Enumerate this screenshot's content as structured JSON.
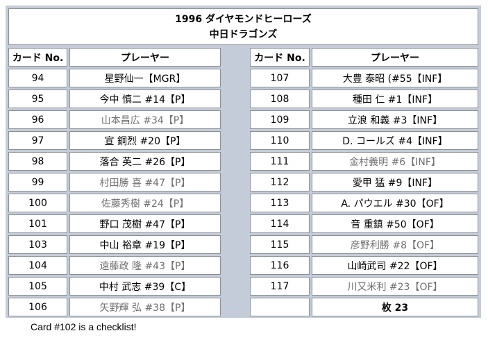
{
  "header": {
    "title": "1996 ダイヤモンドヒーローズ",
    "subtitle": "中日ドラゴンズ"
  },
  "columns": {
    "card_no": "カード No.",
    "player": "プレーヤー"
  },
  "left_rows": [
    {
      "no": "94",
      "player": "星野仙一【MGR】",
      "gray": false
    },
    {
      "no": "95",
      "player": "今中 慎二 #14【P】",
      "gray": false
    },
    {
      "no": "96",
      "player": "山本昌広 #34【P】",
      "gray": true
    },
    {
      "no": "97",
      "player": "宣 銅烈 #20【P】",
      "gray": false
    },
    {
      "no": "98",
      "player": "落合 英二 #26【P】",
      "gray": false
    },
    {
      "no": "99",
      "player": "村田勝 喜 #47【P】",
      "gray": true
    },
    {
      "no": "100",
      "player": "佐藤秀樹 #24【P】",
      "gray": true
    },
    {
      "no": "101",
      "player": "野口 茂樹 #47【P】",
      "gray": false
    },
    {
      "no": "103",
      "player": "中山 裕章 #19【P】",
      "gray": false
    },
    {
      "no": "104",
      "player": "遠藤政 隆 #43【P】",
      "gray": true
    },
    {
      "no": "105",
      "player": "中村 武志 #39【C】",
      "gray": false
    },
    {
      "no": "106",
      "player": "矢野輝 弘 #38【P】",
      "gray": true
    }
  ],
  "right_rows": [
    {
      "no": "107",
      "player": "大豊 泰昭 (#55【INF】",
      "gray": false
    },
    {
      "no": "108",
      "player": "種田 仁 #1【INF】",
      "gray": false
    },
    {
      "no": "109",
      "player": "立浪 和義 #3【INF】",
      "gray": false
    },
    {
      "no": "110",
      "player": "D. コールズ #4【INF】",
      "gray": false
    },
    {
      "no": "111",
      "player": "金村義明 #6【INF】",
      "gray": true
    },
    {
      "no": "112",
      "player": "愛甲 猛 #9【INF】",
      "gray": false
    },
    {
      "no": "113",
      "player": "A. パウエル #30【OF】",
      "gray": false
    },
    {
      "no": "114",
      "player": "音 重鎮 #50【OF】",
      "gray": false
    },
    {
      "no": "115",
      "player": "彦野利勝 #8【OF】",
      "gray": true
    },
    {
      "no": "116",
      "player": "山崎武司 #22【OF】",
      "gray": false
    },
    {
      "no": "117",
      "player": "川又米利 #23【OF】",
      "gray": true
    },
    {
      "no": "",
      "player": "枚 23",
      "gray": false,
      "bold": true
    }
  ],
  "footnote": "Card #102 is a checklist!"
}
